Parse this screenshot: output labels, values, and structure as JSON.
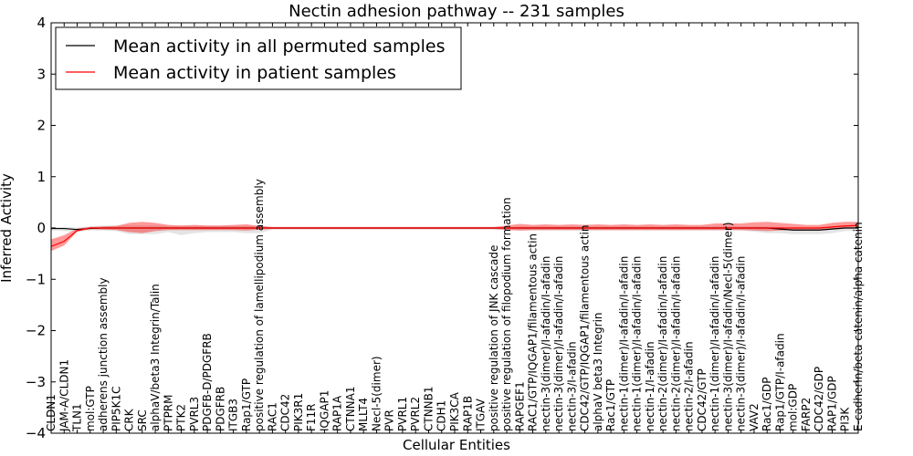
{
  "chart_data": {
    "type": "line",
    "title": "Nectin adhesion pathway -- 231 samples",
    "xlabel": "Cellular Entities",
    "ylabel": "Inferred Activity",
    "ylim": [
      -4,
      4
    ],
    "yticks": [
      "-4",
      "-3",
      "-2",
      "-1",
      "0",
      "1",
      "2",
      "3",
      "4"
    ],
    "grid": false,
    "legend_position": "top-left",
    "categories": [
      "CLDN1",
      "JAM-A/CLDN1",
      "TLN1",
      "mol:GTP",
      "adherens junction assembly",
      "PIP5K1C",
      "CRK",
      "SRC",
      "alphaV/beta3 Integrin/Talin",
      "PTPRM",
      "PTK2",
      "PVRL3",
      "PDGFB-D/PDGFRB",
      "PDGFRB",
      "ITGB3",
      "Rap1/GTP",
      "positive regulation of lamellipodium assembly",
      "RAC1",
      "CDC42",
      "PIK3R1",
      "F11R",
      "IQGAP1",
      "RAP1A",
      "CTNNA1",
      "MLLT4",
      "Necl-5(dimer)",
      "PVR",
      "PVRL1",
      "PVRL2",
      "CTNNB1",
      "CDH1",
      "PIK3CA",
      "RAP1B",
      "ITGAV",
      "positive regulation of JNK cascade",
      "positive regulation of filopodium formation",
      "RAPGEF1",
      "RAC1/GTP/IQGAP1/filamentous actin",
      "nectin-3(dimer)/I-afadin/I-afadin",
      "nectin-3(dimer)/I-afadin/I-afadin",
      "nectin-3/I-afadin",
      "CDC42/GTP/IQGAP1/filamentous actin",
      "alphaV beta3 Integrin",
      "Rac1/GTP",
      "nectin-1(dimer)/I-afadin/I-afadin",
      "nectin-1(dimer)/I-afadin/I-afadin",
      "nectin-1/I-afadin",
      "nectin-2(dimer)/I-afadin/I-afadin",
      "nectin-2(dimer)/I-afadin/I-afadin",
      "nectin-2/I-afadin",
      "CDC42/GTP",
      "nectin-1(dimer)/I-afadin/I-afadin",
      "nectin-3(dimer)/I-afadin/Necl-5(dimer)",
      "nectin-3(dimer)/I-afadin/I-afadin",
      "VAV2",
      "Rac1/GDP",
      "Rap1/GTP/I-afadin",
      "mol:GDP",
      "FARP2",
      "CDC42/GDP",
      "RAP1/GDP",
      "PI3K",
      "E-cadherin/beta catenin/alpha catenin"
    ],
    "series": [
      {
        "name": "Mean activity in all permuted samples",
        "color": "#000000",
        "values": [
          -0.01,
          -0.01,
          -0.03,
          -0.01,
          0.0,
          0.0,
          0.0,
          0.0,
          0.0,
          0.0,
          0.0,
          0.0,
          0.0,
          0.0,
          0.0,
          0.0,
          0.0,
          0.0,
          0.0,
          0.0,
          0.0,
          0.0,
          0.0,
          0.0,
          0.0,
          0.0,
          0.0,
          0.0,
          0.0,
          0.0,
          0.0,
          0.0,
          0.0,
          0.0,
          0.0,
          0.0,
          0.0,
          0.0,
          0.0,
          0.0,
          0.0,
          0.0,
          0.0,
          0.0,
          0.0,
          0.0,
          0.0,
          0.0,
          0.0,
          0.0,
          0.0,
          0.0,
          0.0,
          0.0,
          0.0,
          0.0,
          -0.02,
          -0.04,
          -0.04,
          -0.04,
          -0.02,
          0.0,
          0.0
        ],
        "band_upper": [
          0.02,
          0.02,
          0.01,
          0.03,
          0.05,
          0.05,
          0.05,
          0.05,
          0.05,
          0.04,
          0.04,
          0.04,
          0.04,
          0.04,
          0.04,
          0.04,
          0.04,
          0.02,
          0.02,
          0.02,
          0.02,
          0.02,
          0.02,
          0.02,
          0.02,
          0.02,
          0.02,
          0.02,
          0.02,
          0.02,
          0.02,
          0.02,
          0.02,
          0.02,
          0.02,
          0.02,
          0.03,
          0.03,
          0.03,
          0.03,
          0.03,
          0.03,
          0.03,
          0.03,
          0.03,
          0.03,
          0.03,
          0.03,
          0.03,
          0.03,
          0.03,
          0.03,
          0.03,
          0.03,
          0.03,
          0.03,
          0.02,
          0.0,
          0.0,
          0.0,
          0.02,
          0.03,
          0.03
        ],
        "band_lower": [
          -0.05,
          -0.06,
          -0.07,
          -0.05,
          -0.05,
          -0.06,
          -0.12,
          -0.12,
          -0.12,
          -0.08,
          -0.14,
          -0.1,
          -0.08,
          -0.08,
          -0.08,
          -0.1,
          -0.1,
          -0.03,
          -0.03,
          -0.03,
          -0.03,
          -0.03,
          -0.03,
          -0.03,
          -0.03,
          -0.03,
          -0.03,
          -0.03,
          -0.03,
          -0.03,
          -0.03,
          -0.03,
          -0.03,
          -0.03,
          -0.03,
          -0.03,
          -0.05,
          -0.05,
          -0.05,
          -0.05,
          -0.05,
          -0.05,
          -0.05,
          -0.05,
          -0.05,
          -0.05,
          -0.05,
          -0.05,
          -0.05,
          -0.05,
          -0.05,
          -0.05,
          -0.05,
          -0.05,
          -0.07,
          -0.1,
          -0.1,
          -0.12,
          -0.12,
          -0.12,
          -0.1,
          -0.06,
          -0.05
        ]
      },
      {
        "name": "Mean activity in patient samples",
        "color": "#ff0000",
        "values": [
          -0.36,
          -0.26,
          -0.05,
          0.0,
          0.0,
          0.0,
          0.0,
          0.0,
          0.0,
          0.0,
          0.0,
          0.0,
          0.0,
          0.0,
          0.0,
          0.0,
          0.0,
          0.0,
          0.0,
          0.0,
          0.0,
          0.0,
          0.0,
          0.0,
          0.0,
          0.0,
          0.0,
          0.0,
          0.0,
          0.0,
          0.0,
          0.0,
          0.0,
          0.0,
          0.0,
          0.0,
          0.0,
          0.0,
          0.0,
          0.0,
          0.0,
          0.0,
          0.0,
          0.0,
          0.0,
          0.0,
          0.0,
          0.0,
          0.0,
          0.0,
          0.0,
          0.0,
          0.0,
          0.0,
          0.0,
          0.0,
          0.0,
          0.0,
          0.0,
          0.0,
          0.02,
          0.04,
          0.05
        ],
        "band_upper": [
          -0.22,
          -0.14,
          -0.01,
          0.02,
          0.03,
          0.04,
          0.1,
          0.12,
          0.1,
          0.06,
          0.05,
          0.06,
          0.05,
          0.05,
          0.06,
          0.07,
          0.04,
          0.02,
          0.02,
          0.02,
          0.02,
          0.02,
          0.02,
          0.02,
          0.02,
          0.02,
          0.02,
          0.02,
          0.02,
          0.02,
          0.02,
          0.02,
          0.02,
          0.02,
          0.02,
          0.05,
          0.08,
          0.06,
          0.07,
          0.06,
          0.07,
          0.06,
          0.07,
          0.06,
          0.07,
          0.06,
          0.07,
          0.06,
          0.07,
          0.06,
          0.06,
          0.09,
          0.09,
          0.09,
          0.11,
          0.12,
          0.1,
          0.08,
          0.06,
          0.06,
          0.1,
          0.12,
          0.12
        ],
        "band_lower": [
          -0.45,
          -0.34,
          -0.07,
          -0.02,
          -0.03,
          -0.04,
          -0.08,
          -0.1,
          -0.06,
          -0.04,
          -0.04,
          -0.04,
          -0.04,
          -0.04,
          -0.04,
          -0.05,
          -0.03,
          -0.02,
          -0.02,
          -0.02,
          -0.02,
          -0.02,
          -0.02,
          -0.02,
          -0.02,
          -0.02,
          -0.02,
          -0.02,
          -0.02,
          -0.02,
          -0.02,
          -0.02,
          -0.02,
          -0.02,
          -0.02,
          -0.04,
          -0.05,
          -0.04,
          -0.04,
          -0.04,
          -0.04,
          -0.04,
          -0.04,
          -0.04,
          -0.04,
          -0.04,
          -0.04,
          -0.04,
          -0.04,
          -0.04,
          -0.04,
          -0.04,
          -0.04,
          -0.04,
          -0.05,
          -0.06,
          -0.05,
          -0.04,
          -0.03,
          -0.03,
          -0.02,
          -0.01,
          -0.01
        ]
      }
    ]
  }
}
